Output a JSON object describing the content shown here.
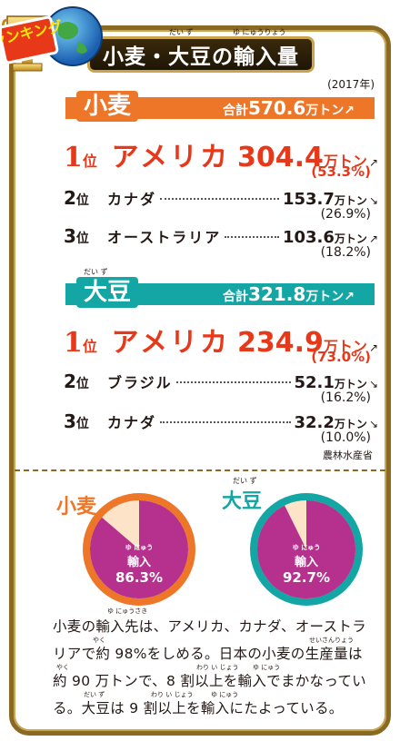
{
  "badge": {
    "text": "ランキング"
  },
  "title": {
    "text": "小麦・大豆の輸入量",
    "ruby_daizu": "だい ず",
    "ruby_yunyuryo": "ゆ にゅうりょう"
  },
  "year": "(2017年)",
  "wheat": {
    "label": "小麦",
    "total_prefix": "合計",
    "total_value": "570.6",
    "total_unit": "万トン",
    "rankings": [
      {
        "rank_num": "1",
        "rank_suffix": "位",
        "country": "アメリカ",
        "value": "304.4",
        "unit": "万トン",
        "pct": "(53.3%)"
      },
      {
        "rank_num": "2",
        "rank_suffix": "位",
        "country": "カナダ",
        "value": "153.7",
        "unit": "万トン",
        "pct": "(26.9%)"
      },
      {
        "rank_num": "3",
        "rank_suffix": "位",
        "country": "オーストラリア",
        "value": "103.6",
        "unit": "万トン",
        "pct": "(18.2%)"
      }
    ]
  },
  "soy": {
    "label": "大豆",
    "ruby": "だい ず",
    "total_prefix": "合計",
    "total_value": "321.8",
    "total_unit": "万トン",
    "rankings": [
      {
        "rank_num": "1",
        "rank_suffix": "位",
        "country": "アメリカ",
        "value": "234.9",
        "unit": "万トン",
        "pct": "(73.0%)"
      },
      {
        "rank_num": "2",
        "rank_suffix": "位",
        "country": "ブラジル",
        "value": "52.1",
        "unit": "万トン",
        "pct": "(16.2%)"
      },
      {
        "rank_num": "3",
        "rank_suffix": "位",
        "country": "カナダ",
        "value": "32.2",
        "unit": "万トン",
        "pct": "(10.0%)"
      }
    ]
  },
  "source": "農林水産省",
  "pies": [
    {
      "label": "小麦",
      "inner_ruby": "ゆ にゅう",
      "inner_label": "輸入",
      "import_pct": 86.3,
      "pct_text": "86.3%",
      "ring_color": "#ee7628",
      "fill_color": "#b5318d",
      "rest_color": "#fde3c8"
    },
    {
      "label": "大豆",
      "label_ruby": "だい ず",
      "inner_ruby": "ゆ にゅう",
      "inner_label": "輸入",
      "import_pct": 92.7,
      "pct_text": "92.7%",
      "ring_color": "#13a6a4",
      "fill_color": "#b5318d",
      "rest_color": "#fde3c8"
    }
  ],
  "paragraph": {
    "line1": "小麦の輸入先は、アメリカ、カナダ、オーストラ",
    "line2": "リアで約 98%をしめる。日本の小麦の生産量は",
    "line3": "約 90 万トンで、8 割以上を輸入でまかなってい",
    "line4": "る。大豆は 9 割以上を輸入にたよっている。",
    "ruby1": "ゆ にゅうさき",
    "ruby2a": "やく",
    "ruby2b": "せいさんりょう",
    "ruby3a": "やく",
    "ruby3b": "わり い じょう",
    "ruby3c": "ゆ にゅう",
    "ruby4a": "だい ず",
    "ruby4b": "わり い じょう",
    "ruby4c": "ゆ にゅう"
  }
}
